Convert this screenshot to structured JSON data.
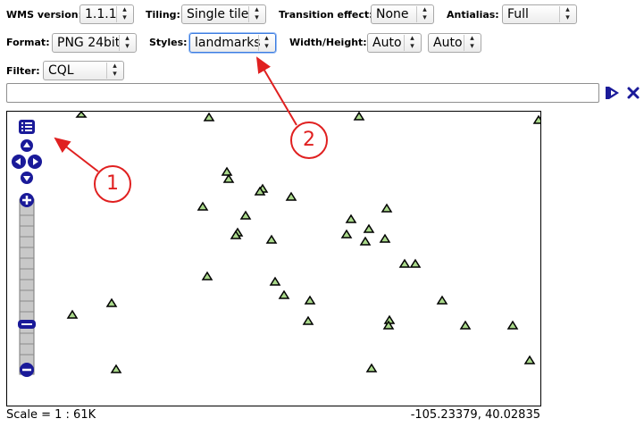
{
  "toolbar": {
    "wms_version": {
      "label": "WMS version:",
      "value": "1.1.1"
    },
    "tiling": {
      "label": "Tiling:",
      "value": "Single tile"
    },
    "transition": {
      "label": "Transition effect:",
      "value": "None"
    },
    "antialias": {
      "label": "Antialias:",
      "value": "Full"
    },
    "format": {
      "label": "Format:",
      "value": "PNG 24bit"
    },
    "styles": {
      "label": "Styles:",
      "value": "landmarks"
    },
    "width_height": {
      "label": "Width/Height:",
      "width": "Auto",
      "height": "Auto"
    },
    "filter": {
      "label": "Filter:",
      "value": "CQL"
    }
  },
  "filter_input": {
    "value": ""
  },
  "map": {
    "point_color": "#a9d88a",
    "nav_color": "#1a1a99"
  },
  "status": {
    "scale": "Scale = 1 : 61K",
    "coordinates": "-105.23379, 40.02835"
  },
  "annotations": {
    "callout_1": "1",
    "callout_2": "2",
    "color": "#e02020"
  }
}
